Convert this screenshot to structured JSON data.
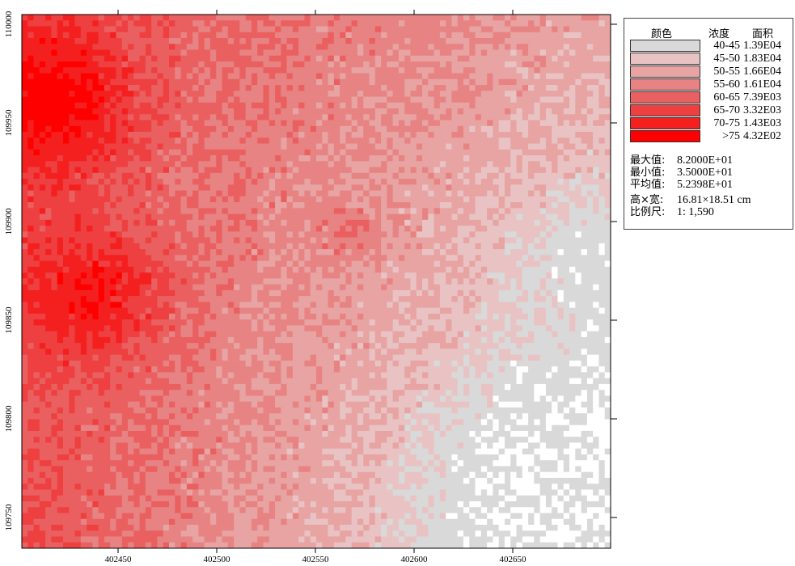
{
  "map": {
    "x_ticks": [
      "402450",
      "402500",
      "402550",
      "402600",
      "402650"
    ],
    "y_ticks": [
      "110000",
      "109950",
      "109900",
      "109850",
      "109800",
      "109750"
    ]
  },
  "legend": {
    "header_color": "颜色",
    "header_conc": "浓度",
    "header_area": "面积",
    "classes": [
      {
        "range": "40-45",
        "area": "1.39E04",
        "color": "#d9d9d9"
      },
      {
        "range": "45-50",
        "area": "1.83E04",
        "color": "#e9c3c3"
      },
      {
        "range": "50-55",
        "area": "1.66E04",
        "color": "#e8a3a3"
      },
      {
        "range": "55-60",
        "area": "1.61E04",
        "color": "#e88383"
      },
      {
        "range": "60-65",
        "area": "7.39E03",
        "color": "#ea6060"
      },
      {
        "range": "65-70",
        "area": "3.32E03",
        "color": "#ee4040"
      },
      {
        "range": "70-75",
        "area": "1.43E03",
        "color": "#f42020"
      },
      {
        "range": ">75",
        "area": "4.32E02",
        "color": "#ff0000"
      }
    ],
    "stats": {
      "max_label": "最大值:",
      "max_value": "8.2000E+01",
      "min_label": "最小值:",
      "min_value": "3.5000E+01",
      "mean_label": "平均值:",
      "mean_value": "5.2398E+01",
      "size_label": "高×宽:",
      "size_value": "16.81×18.51 cm",
      "scale_label": "比例尺:",
      "scale_value": "1: 1,590"
    }
  }
}
